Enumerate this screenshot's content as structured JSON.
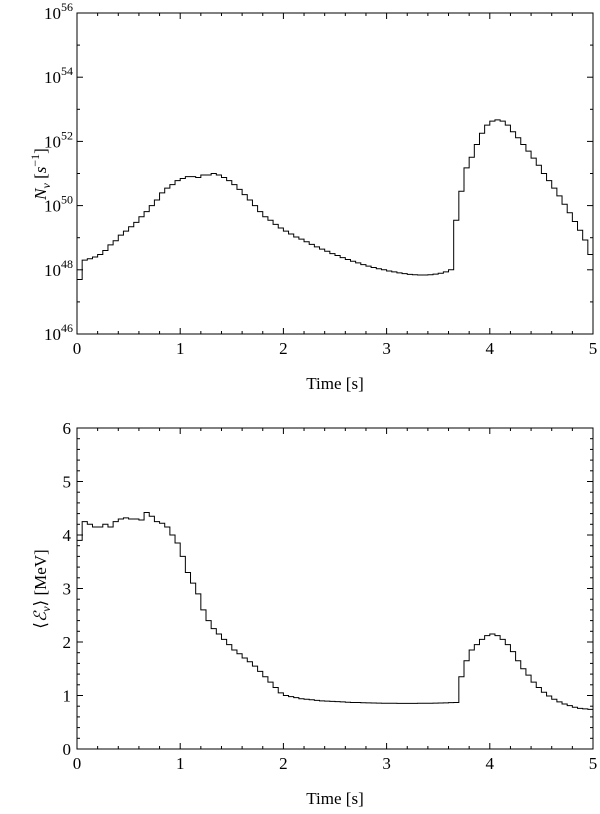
{
  "chart_data": [
    {
      "type": "line",
      "style": "step",
      "xlabel": "Time [s]",
      "ylabel": "N_ν [s⁻¹]",
      "ylabel_parts": {
        "sym": "N",
        "sub": "ν",
        "unit_open": " [",
        "s": "s",
        "sup": "−1",
        "unit_close": "]"
      },
      "y_scale": "log",
      "xlim": [
        0,
        5
      ],
      "ylim": [
        1e+46,
        1e+56
      ],
      "x_ticks": [
        "0",
        "1",
        "2",
        "3",
        "4",
        "5"
      ],
      "y_ticks": [
        {
          "base": "10",
          "exp": "46",
          "value": 1e+46
        },
        {
          "base": "10",
          "exp": "48",
          "value": 1e+48
        },
        {
          "base": "10",
          "exp": "50",
          "value": 1e+50
        },
        {
          "base": "10",
          "exp": "52",
          "value": 1e+52
        },
        {
          "base": "10",
          "exp": "54",
          "value": 1e+54
        },
        {
          "base": "10",
          "exp": "56",
          "value": 1e+56
        }
      ],
      "grid": false,
      "x": [
        0.0,
        0.05,
        0.1,
        0.15,
        0.2,
        0.25,
        0.3,
        0.35,
        0.4,
        0.45,
        0.5,
        0.55,
        0.6,
        0.65,
        0.7,
        0.75,
        0.8,
        0.85,
        0.9,
        0.95,
        1.0,
        1.05,
        1.1,
        1.15,
        1.2,
        1.25,
        1.3,
        1.35,
        1.4,
        1.45,
        1.5,
        1.55,
        1.6,
        1.65,
        1.7,
        1.75,
        1.8,
        1.85,
        1.9,
        1.95,
        2.0,
        2.05,
        2.1,
        2.15,
        2.2,
        2.25,
        2.3,
        2.35,
        2.4,
        2.45,
        2.5,
        2.55,
        2.6,
        2.65,
        2.7,
        2.75,
        2.8,
        2.85,
        2.9,
        2.95,
        3.0,
        3.05,
        3.1,
        3.15,
        3.2,
        3.25,
        3.3,
        3.35,
        3.4,
        3.45,
        3.5,
        3.55,
        3.6,
        3.65,
        3.7,
        3.75,
        3.8,
        3.85,
        3.9,
        3.95,
        4.0,
        4.05,
        4.1,
        4.15,
        4.2,
        4.25,
        4.3,
        4.35,
        4.4,
        4.45,
        4.5,
        4.55,
        4.6,
        4.65,
        4.7,
        4.75,
        4.8,
        4.85,
        4.9,
        4.95
      ],
      "values": [
        5e+47,
        2e+48,
        2.2e+48,
        2.5e+48,
        3e+48,
        4e+48,
        6e+48,
        8e+48,
        1.2e+49,
        1.6e+49,
        2.2e+49,
        3e+49,
        4.5e+49,
        6.5e+49,
        1e+50,
        1.5e+50,
        2.5e+50,
        3.5e+50,
        4.5e+50,
        6e+50,
        7e+50,
        8e+50,
        8e+50,
        7.5e+50,
        9e+50,
        9e+50,
        1e+51,
        9e+50,
        7.5e+50,
        6e+50,
        4.5e+50,
        3.2e+50,
        2.2e+50,
        1.5e+50,
        1e+50,
        6.5e+49,
        4.5e+49,
        3.5e+49,
        2.6e+49,
        2e+49,
        1.6e+49,
        1.3e+49,
        1.05e+49,
        9e+48,
        7.5e+48,
        6.2e+48,
        5.2e+48,
        4.4e+48,
        3.8e+48,
        3.2e+48,
        2.8e+48,
        2.4e+48,
        2.1e+48,
        1.85e+48,
        1.65e+48,
        1.45e+48,
        1.3e+48,
        1.18e+48,
        1.08e+48,
        1e+48,
        9.2e+47,
        8.6e+47,
        8e+47,
        7.6e+47,
        7.2e+47,
        7e+47,
        6.9e+47,
        6.9e+47,
        7e+47,
        7.3e+47,
        7.8e+47,
        8.6e+47,
        1e+48,
        3.5e+49,
        2.8e+50,
        1.5e+51,
        3.2e+51,
        8e+51,
        1.8e+52,
        3.2e+52,
        4.3e+52,
        4.7e+52,
        4.3e+52,
        3.2e+52,
        2e+52,
        1.3e+52,
        8e+51,
        5e+51,
        3e+51,
        1.8e+51,
        1e+51,
        6e+50,
        3.5e+50,
        2e+50,
        1.1e+50,
        6e+49,
        3.2e+49,
        1.7e+49,
        8.5e+48,
        3e+48
      ]
    },
    {
      "type": "line",
      "style": "step",
      "xlabel": "Time [s]",
      "ylabel": "⟨ℰ_ν⟩ [MeV]",
      "ylabel_parts": {
        "open": "⟨",
        "sym": "ℰ",
        "sub": "ν",
        "close": "⟩",
        "unit": " [MeV]"
      },
      "y_scale": "linear",
      "xlim": [
        0,
        5
      ],
      "ylim": [
        0,
        6
      ],
      "x_ticks": [
        "0",
        "1",
        "2",
        "3",
        "4",
        "5"
      ],
      "y_ticks": [
        "0",
        "1",
        "2",
        "3",
        "4",
        "5",
        "6"
      ],
      "grid": false,
      "x": [
        0.0,
        0.05,
        0.1,
        0.15,
        0.2,
        0.25,
        0.3,
        0.35,
        0.4,
        0.45,
        0.5,
        0.55,
        0.6,
        0.65,
        0.7,
        0.75,
        0.8,
        0.85,
        0.9,
        0.95,
        1.0,
        1.05,
        1.1,
        1.15,
        1.2,
        1.25,
        1.3,
        1.35,
        1.4,
        1.45,
        1.5,
        1.55,
        1.6,
        1.65,
        1.7,
        1.75,
        1.8,
        1.85,
        1.9,
        1.95,
        2.0,
        2.05,
        2.1,
        2.15,
        2.2,
        2.25,
        2.3,
        2.35,
        2.4,
        2.45,
        2.5,
        2.55,
        2.6,
        2.65,
        2.7,
        2.75,
        2.8,
        2.85,
        2.9,
        2.95,
        3.0,
        3.05,
        3.1,
        3.15,
        3.2,
        3.25,
        3.3,
        3.35,
        3.4,
        3.45,
        3.5,
        3.55,
        3.6,
        3.65,
        3.7,
        3.75,
        3.8,
        3.85,
        3.9,
        3.95,
        4.0,
        4.05,
        4.1,
        4.15,
        4.2,
        4.25,
        4.3,
        4.35,
        4.4,
        4.45,
        4.5,
        4.55,
        4.6,
        4.65,
        4.7,
        4.75,
        4.8,
        4.85,
        4.9,
        4.95
      ],
      "values": [
        3.9,
        4.25,
        4.2,
        4.15,
        4.15,
        4.2,
        4.15,
        4.25,
        4.3,
        4.32,
        4.3,
        4.3,
        4.28,
        4.42,
        4.35,
        4.25,
        4.22,
        4.15,
        4.0,
        3.85,
        3.6,
        3.3,
        3.1,
        2.9,
        2.6,
        2.4,
        2.25,
        2.15,
        2.05,
        1.95,
        1.85,
        1.78,
        1.7,
        1.63,
        1.55,
        1.45,
        1.35,
        1.25,
        1.15,
        1.05,
        1.0,
        0.98,
        0.96,
        0.94,
        0.93,
        0.92,
        0.91,
        0.9,
        0.895,
        0.89,
        0.885,
        0.88,
        0.875,
        0.87,
        0.868,
        0.865,
        0.862,
        0.86,
        0.858,
        0.856,
        0.855,
        0.854,
        0.853,
        0.853,
        0.853,
        0.853,
        0.854,
        0.855,
        0.856,
        0.858,
        0.86,
        0.863,
        0.867,
        0.87,
        1.35,
        1.65,
        1.85,
        1.95,
        2.05,
        2.12,
        2.15,
        2.12,
        2.05,
        1.95,
        1.82,
        1.65,
        1.5,
        1.38,
        1.25,
        1.15,
        1.06,
        0.99,
        0.93,
        0.88,
        0.84,
        0.81,
        0.78,
        0.76,
        0.75,
        0.74
      ]
    }
  ]
}
